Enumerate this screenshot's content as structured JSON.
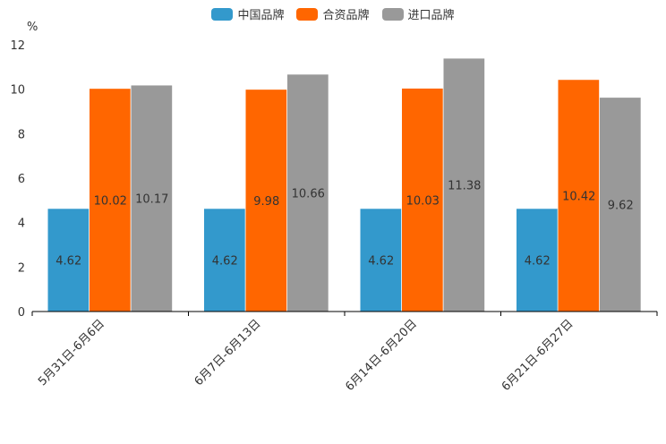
{
  "chart_data": {
    "type": "bar",
    "title": "",
    "xlabel": "",
    "ylabel": "%",
    "ylim": [
      0,
      12
    ],
    "yticks": [
      0,
      2,
      4,
      6,
      8,
      10,
      12
    ],
    "categories": [
      "5月31日-6月6日",
      "6月7日-6月13日",
      "6月14日-6月20日",
      "6月21日-6月27日"
    ],
    "series": [
      {
        "name": "中国品牌",
        "color": "#3399cc",
        "values": [
          4.62,
          4.62,
          4.62,
          4.62
        ],
        "labels": [
          "4.62",
          "4.62",
          "4.62",
          "4.62"
        ]
      },
      {
        "name": "合资品牌",
        "color": "#ff6600",
        "values": [
          10.02,
          9.98,
          10.03,
          10.42
        ],
        "labels": [
          "10.02",
          "9.98",
          "10.03",
          "10.42"
        ]
      },
      {
        "name": "进口品牌",
        "color": "#999999",
        "values": [
          10.17,
          10.66,
          11.38,
          9.62
        ],
        "labels": [
          "10.17",
          "10.66",
          "11.38",
          "9.62"
        ]
      }
    ],
    "legend": "top-center",
    "grid": false
  }
}
